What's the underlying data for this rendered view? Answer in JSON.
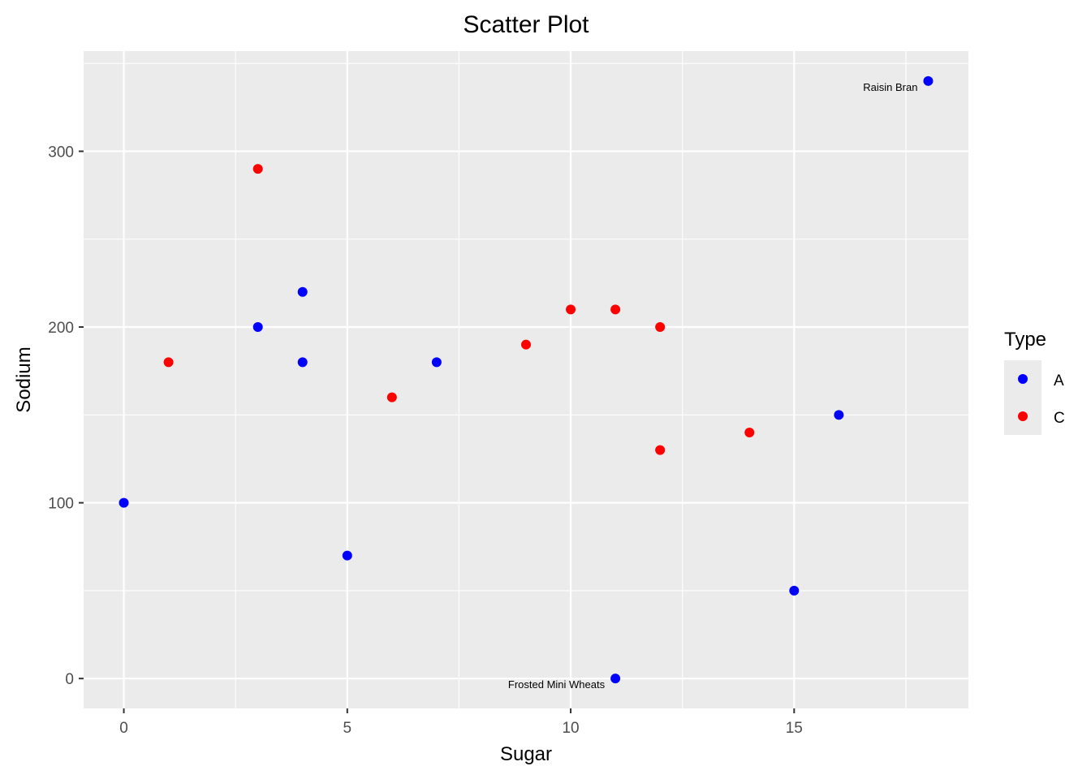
{
  "chart_data": {
    "type": "scatter",
    "title": "Scatter Plot",
    "xlabel": "Sugar",
    "ylabel": "Sodium",
    "xlim": [
      -0.9,
      18.9
    ],
    "ylim": [
      -17,
      357
    ],
    "x_ticks": [
      0,
      5,
      10,
      15
    ],
    "y_ticks": [
      0,
      100,
      200,
      300
    ],
    "grid": true,
    "panel_background": "#ebebeb",
    "legend": {
      "title": "Type",
      "position": "right",
      "entries": [
        {
          "label": "A",
          "color": "#0000ff"
        },
        {
          "label": "C",
          "color": "#ff0000"
        }
      ]
    },
    "series": [
      {
        "name": "A",
        "color": "#0000ff",
        "points": [
          {
            "x": 0,
            "y": 100
          },
          {
            "x": 3,
            "y": 200
          },
          {
            "x": 4,
            "y": 220
          },
          {
            "x": 4,
            "y": 180
          },
          {
            "x": 5,
            "y": 70
          },
          {
            "x": 7,
            "y": 180
          },
          {
            "x": 11,
            "y": 0,
            "label": "Frosted Mini Wheats"
          },
          {
            "x": 15,
            "y": 50
          },
          {
            "x": 16,
            "y": 150
          },
          {
            "x": 18,
            "y": 340,
            "label": "Raisin Bran"
          }
        ]
      },
      {
        "name": "C",
        "color": "#ff0000",
        "points": [
          {
            "x": 1,
            "y": 180
          },
          {
            "x": 3,
            "y": 290
          },
          {
            "x": 6,
            "y": 160
          },
          {
            "x": 9,
            "y": 190
          },
          {
            "x": 10,
            "y": 210
          },
          {
            "x": 11,
            "y": 210
          },
          {
            "x": 12,
            "y": 200
          },
          {
            "x": 12,
            "y": 130
          },
          {
            "x": 14,
            "y": 140
          }
        ]
      }
    ]
  }
}
